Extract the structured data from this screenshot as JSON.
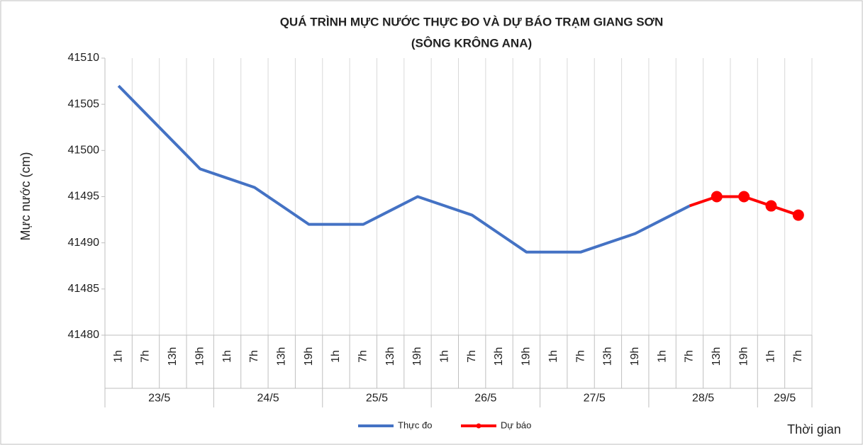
{
  "chart_data": {
    "type": "line",
    "title": "QUÁ TRÌNH MỰC NƯỚC THỰC ĐO VÀ DỰ BÁO TRẠM GIANG SƠN",
    "subtitle": "(SÔNG KRÔNG ANA)",
    "y_label": "Mực nước (cm)",
    "x_label": "Thời gian",
    "groups": [
      {
        "label": "23/5",
        "categories": [
          "1h",
          "7h",
          "13h",
          "19h"
        ]
      },
      {
        "label": "24/5",
        "categories": [
          "1h",
          "7h",
          "13h",
          "19h"
        ]
      },
      {
        "label": "25/5",
        "categories": [
          "1h",
          "7h",
          "13h",
          "19h"
        ]
      },
      {
        "label": "26/5",
        "categories": [
          "1h",
          "7h",
          "13h",
          "19h"
        ]
      },
      {
        "label": "27/5",
        "categories": [
          "1h",
          "7h",
          "13h",
          "19h"
        ]
      },
      {
        "label": "28/5",
        "categories": [
          "1h",
          "7h",
          "13h",
          "19h"
        ]
      },
      {
        "label": "29/5",
        "categories": [
          "1h",
          "7h"
        ]
      }
    ],
    "series": [
      {
        "name": "Thực đo",
        "color": "#4472c4",
        "values": [
          41507,
          41504,
          41501,
          41498,
          41497,
          41496,
          41494,
          41492,
          41492,
          41492,
          41493.5,
          41495,
          41494,
          41493,
          41491,
          41489,
          41489,
          41489,
          41490,
          41491,
          41492.5,
          41494,
          null,
          null,
          null,
          null
        ]
      },
      {
        "name": "Dự báo",
        "color": "#ff0000",
        "values": [
          null,
          null,
          null,
          null,
          null,
          null,
          null,
          null,
          null,
          null,
          null,
          null,
          null,
          null,
          null,
          null,
          null,
          null,
          null,
          null,
          null,
          41494,
          41495,
          41495,
          41494,
          41493
        ]
      }
    ],
    "ylim": [
      41480,
      41510
    ],
    "yticks": [
      41480,
      41485,
      41490,
      41495,
      41500,
      41505,
      41510
    ],
    "grid": "vertical"
  }
}
